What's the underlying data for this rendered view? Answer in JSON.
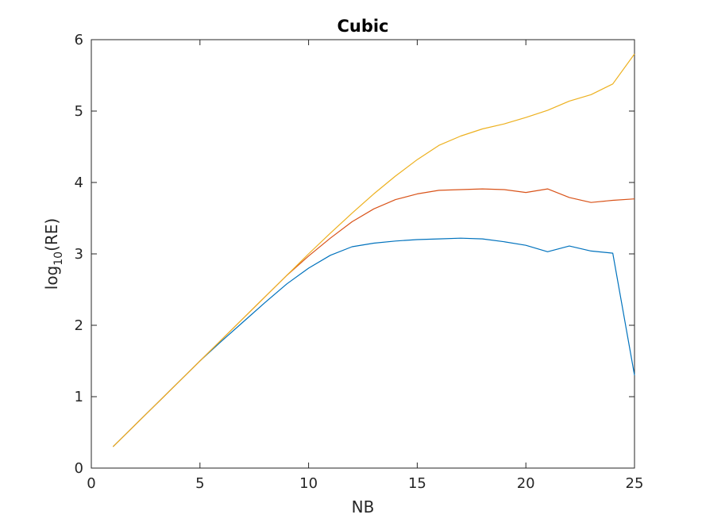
{
  "chart_data": {
    "type": "line",
    "title": "Cubic",
    "xlabel": "NB",
    "ylabel_base": "log",
    "ylabel_sub": "10",
    "ylabel_rest": "(RE)",
    "xlim": [
      0,
      25
    ],
    "ylim": [
      0,
      6
    ],
    "xticks": [
      0,
      5,
      10,
      15,
      20,
      25
    ],
    "yticks": [
      0,
      1,
      2,
      3,
      4,
      5,
      6
    ],
    "grid": false,
    "x": [
      1,
      2,
      3,
      4,
      5,
      6,
      7,
      8,
      9,
      10,
      11,
      12,
      13,
      14,
      15,
      16,
      17,
      18,
      19,
      20,
      21,
      22,
      23,
      24,
      25
    ],
    "series": [
      {
        "color": "#0072BD",
        "values": [
          0.3,
          0.6,
          0.9,
          1.2,
          1.5,
          1.78,
          2.05,
          2.32,
          2.58,
          2.8,
          2.98,
          3.1,
          3.15,
          3.18,
          3.2,
          3.21,
          3.22,
          3.21,
          3.17,
          3.12,
          3.03,
          3.11,
          3.04,
          3.01,
          1.3
        ]
      },
      {
        "color": "#D95319",
        "values": [
          0.3,
          0.6,
          0.9,
          1.2,
          1.5,
          1.8,
          2.1,
          2.4,
          2.7,
          2.97,
          3.22,
          3.45,
          3.63,
          3.76,
          3.84,
          3.89,
          3.9,
          3.91,
          3.9,
          3.86,
          3.91,
          3.79,
          3.72,
          3.75,
          3.77
        ]
      },
      {
        "color": "#EDB120",
        "values": [
          0.3,
          0.6,
          0.9,
          1.2,
          1.5,
          1.8,
          2.1,
          2.4,
          2.7,
          3.0,
          3.29,
          3.57,
          3.84,
          4.09,
          4.32,
          4.52,
          4.65,
          4.75,
          4.82,
          4.91,
          5.01,
          5.14,
          5.23,
          5.38,
          5.8
        ]
      }
    ]
  }
}
